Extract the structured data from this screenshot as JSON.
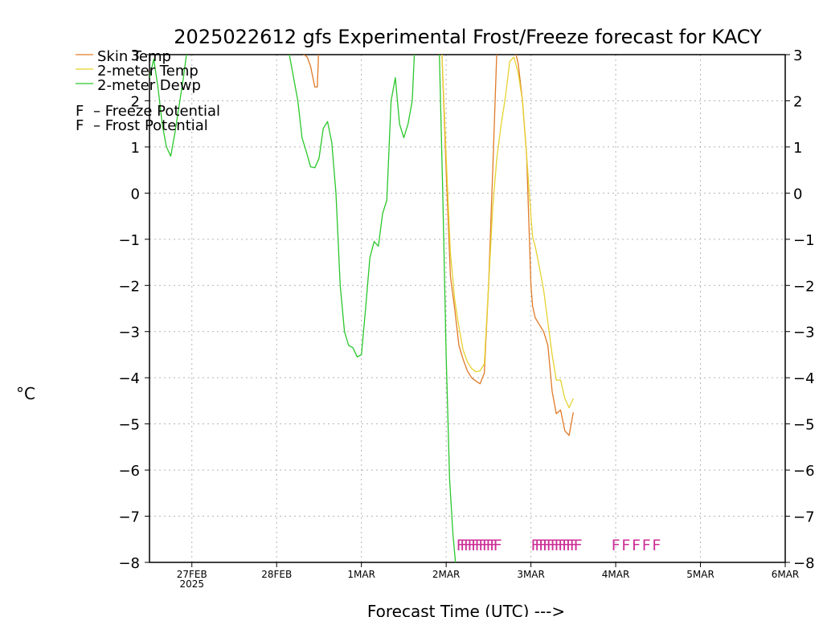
{
  "chart_data": {
    "type": "line",
    "title": "2025022612 gfs Experimental Frost/Freeze forecast for KACY",
    "ylabel": "°C",
    "xlabel": "Forecast Time (UTC) --->",
    "ylim": [
      -8,
      3
    ],
    "xlim": [
      0,
      7.5
    ],
    "yticks": [
      -8,
      -7,
      -6,
      -5,
      -4,
      -3,
      -2,
      -1,
      0,
      1,
      2,
      3
    ],
    "yticklabels_left": [
      "−8",
      "−7",
      "−6",
      "−5",
      "−4",
      "−3",
      "−2",
      "−1",
      "0",
      "1",
      "2",
      "3"
    ],
    "yticklabels_right": [
      "−8",
      "−7",
      "−6",
      "−5",
      "−4",
      "−3",
      "−2",
      "−1",
      "0",
      "1",
      "2",
      "3"
    ],
    "xticks": [
      {
        "x": 0.5,
        "label": "27FEB",
        "sublabel": "2025"
      },
      {
        "x": 1.5,
        "label": "28FEB",
        "sublabel": ""
      },
      {
        "x": 2.5,
        "label": "1MAR",
        "sublabel": ""
      },
      {
        "x": 3.5,
        "label": "2MAR",
        "sublabel": ""
      },
      {
        "x": 4.5,
        "label": "3MAR",
        "sublabel": ""
      },
      {
        "x": 5.5,
        "label": "4MAR",
        "sublabel": ""
      },
      {
        "x": 6.5,
        "label": "5MAR",
        "sublabel": ""
      },
      {
        "x": 7.5,
        "label": "6MAR",
        "sublabel": ""
      }
    ],
    "grid": true,
    "legend_position": "top-left",
    "series": [
      {
        "name": "Skin Temp",
        "color": "#e07a28",
        "x": [
          1.8,
          1.82,
          1.86,
          1.9,
          1.95,
          1.98,
          1.99,
          2.0
        ],
        "y": [
          6.0,
          3.0,
          2.95,
          2.75,
          2.3,
          2.3,
          2.8,
          3.5
        ],
        "x2": [
          3.4,
          3.45,
          3.5,
          3.55,
          3.6,
          3.65,
          3.7,
          3.75,
          3.8,
          3.85,
          3.9,
          3.95,
          4.0,
          4.05,
          4.1,
          4.15,
          4.2,
          4.25,
          4.3,
          4.35,
          4.4,
          4.45,
          4.5,
          4.52,
          4.55,
          4.6,
          4.65,
          4.7,
          4.75,
          4.8,
          4.85,
          4.9,
          4.95,
          5.0
        ],
        "y2": [
          6.0,
          3.0,
          0.5,
          -1.8,
          -2.5,
          -3.3,
          -3.6,
          -3.85,
          -4.0,
          -4.07,
          -4.13,
          -3.9,
          -2.0,
          0.5,
          3.2,
          5.0,
          6.0,
          4.5,
          3.2,
          2.8,
          2.0,
          0.8,
          -2.0,
          -2.45,
          -2.7,
          -2.85,
          -3.0,
          -3.3,
          -4.3,
          -4.78,
          -4.7,
          -5.15,
          -5.25,
          -4.75
        ]
      },
      {
        "name": "2-meter Temp",
        "color": "#e6d230",
        "x": [
          3.4,
          3.45,
          3.5,
          3.55,
          3.6,
          3.65,
          3.7,
          3.75,
          3.8,
          3.85,
          3.9,
          3.95,
          4.0,
          4.05,
          4.1,
          4.15,
          4.2,
          4.25,
          4.3,
          4.35,
          4.4,
          4.45,
          4.5,
          4.52,
          4.55,
          4.6,
          4.65,
          4.7,
          4.75,
          4.8,
          4.85,
          4.9,
          4.95,
          5.0
        ],
        "y": [
          6.0,
          3.0,
          0.8,
          -1.3,
          -2.3,
          -2.9,
          -3.4,
          -3.65,
          -3.8,
          -3.87,
          -3.85,
          -3.7,
          -2.0,
          -0.3,
          0.8,
          1.5,
          2.1,
          2.85,
          2.95,
          2.6,
          2.0,
          0.8,
          -0.5,
          -0.95,
          -1.15,
          -1.6,
          -2.1,
          -2.8,
          -3.5,
          -4.05,
          -4.05,
          -4.45,
          -4.65,
          -4.45
        ]
      },
      {
        "name": "2-meter Dewp",
        "color": "#2ac72a",
        "x": [
          0.0,
          0.05,
          0.1,
          0.15,
          0.2,
          0.25,
          0.3,
          0.35,
          0.4,
          0.45,
          0.5
        ],
        "y": [
          2.5,
          2.9,
          2.3,
          1.5,
          1.0,
          0.8,
          1.3,
          1.9,
          2.5,
          3.2,
          4.0
        ],
        "x2": [
          1.6,
          1.65,
          1.7,
          1.75,
          1.8,
          1.85,
          1.9,
          1.95,
          2.0,
          2.05,
          2.1,
          2.15,
          2.2,
          2.25,
          2.3,
          2.35,
          2.4,
          2.45,
          2.5,
          2.55,
          2.6,
          2.65,
          2.7,
          2.75,
          2.8,
          2.85,
          2.9,
          2.95,
          3.0,
          3.05,
          3.1,
          3.15
        ],
        "y2": [
          5.0,
          3.0,
          2.5,
          2.0,
          1.2,
          0.9,
          0.57,
          0.55,
          0.75,
          1.4,
          1.55,
          1.1,
          0.0,
          -2.0,
          -3.0,
          -3.3,
          -3.35,
          -3.55,
          -3.5,
          -2.5,
          -1.4,
          -1.05,
          -1.15,
          -0.45,
          -0.15,
          2.0,
          2.5,
          1.5,
          1.2,
          1.5,
          2.0,
          4.0
        ],
        "x3": [
          3.38,
          3.42,
          3.46,
          3.5,
          3.54,
          3.58,
          3.62
        ],
        "y3": [
          6.0,
          3.0,
          0.0,
          -3.5,
          -6.2,
          -7.4,
          -8.2
        ]
      }
    ],
    "annotations": [
      {
        "text": "F",
        "color": "#cc2e96",
        "x_start": 3.62,
        "x_end": 4.1,
        "count": 11,
        "y": -7.55,
        "meaning": "Freeze Potential"
      },
      {
        "text": "F",
        "color": "#cc2e96",
        "x_start": 4.5,
        "x_end": 5.05,
        "count": 12,
        "y": -7.55,
        "meaning": "Freeze Potential"
      },
      {
        "text": "F",
        "color": "#cc2e96",
        "x_start": 5.45,
        "x_end": 6.05,
        "count": 5,
        "y": -7.55,
        "meaning": "Freeze Potential"
      }
    ],
    "legend": [
      {
        "label": "Skin Temp",
        "color": "#e07a28",
        "marker": "line"
      },
      {
        "label": "2-meter Temp",
        "color": "#e6d230",
        "marker": "line"
      },
      {
        "label": "2-meter Dewp",
        "color": "#2ac72a",
        "marker": "line"
      },
      {
        "label": "F",
        "suffix": "– Freeze Potential",
        "color": "#cc2e96",
        "marker": "letter"
      },
      {
        "label": "F",
        "suffix": "– Frost Potential",
        "color": "#4a55d8",
        "marker": "letter"
      }
    ]
  }
}
